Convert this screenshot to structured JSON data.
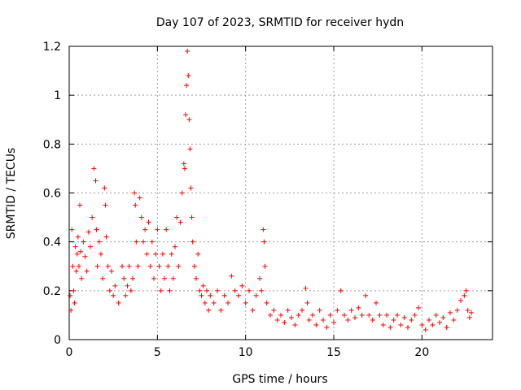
{
  "chart_data": {
    "type": "scatter",
    "title": "Day 107 of 2023, SRMTID for receiver hydn",
    "xlabel": "GPS time / hours",
    "ylabel": "SRMTID / TECUs",
    "xlim": [
      0,
      24
    ],
    "ylim": [
      0,
      1.2
    ],
    "xticks": [
      0,
      5,
      10,
      15,
      20
    ],
    "yticks": [
      0,
      0.2,
      0.4,
      0.6,
      0.8,
      1,
      1.2
    ],
    "xtick_labels": [
      "0",
      "5",
      "10",
      "15",
      "20"
    ],
    "ytick_labels": [
      "0",
      "0.2",
      "0.4",
      "0.6",
      "0.8",
      "1",
      "1.2"
    ],
    "grid": true,
    "marker": "+",
    "series_color": "#ff0000",
    "series": [
      {
        "name": "SRMTID",
        "points": [
          [
            0.05,
            0.18
          ],
          [
            0.1,
            0.12
          ],
          [
            0.15,
            0.45
          ],
          [
            0.2,
            0.3
          ],
          [
            0.25,
            0.2
          ],
          [
            0.3,
            0.15
          ],
          [
            0.35,
            0.38
          ],
          [
            0.4,
            0.28
          ],
          [
            0.45,
            0.35
          ],
          [
            0.5,
            0.42
          ],
          [
            0.55,
            0.3
          ],
          [
            0.6,
            0.55
          ],
          [
            0.65,
            0.36
          ],
          [
            0.7,
            0.25
          ],
          [
            0.8,
            0.4
          ],
          [
            0.9,
            0.34
          ],
          [
            1.0,
            0.28
          ],
          [
            1.1,
            0.44
          ],
          [
            1.2,
            0.38
          ],
          [
            1.3,
            0.5
          ],
          [
            1.4,
            0.7
          ],
          [
            1.5,
            0.65
          ],
          [
            1.55,
            0.45
          ],
          [
            1.6,
            0.3
          ],
          [
            1.7,
            0.4
          ],
          [
            1.8,
            0.35
          ],
          [
            1.9,
            0.25
          ],
          [
            2.0,
            0.62
          ],
          [
            2.05,
            0.55
          ],
          [
            2.1,
            0.42
          ],
          [
            2.2,
            0.3
          ],
          [
            2.3,
            0.2
          ],
          [
            2.4,
            0.28
          ],
          [
            2.5,
            0.18
          ],
          [
            2.6,
            0.22
          ],
          [
            2.8,
            0.15
          ],
          [
            3.0,
            0.3
          ],
          [
            3.1,
            0.25
          ],
          [
            3.2,
            0.18
          ],
          [
            3.3,
            0.22
          ],
          [
            3.4,
            0.3
          ],
          [
            3.5,
            0.2
          ],
          [
            3.6,
            0.25
          ],
          [
            3.7,
            0.6
          ],
          [
            3.75,
            0.55
          ],
          [
            3.8,
            0.4
          ],
          [
            3.9,
            0.3
          ],
          [
            4.0,
            0.58
          ],
          [
            4.1,
            0.5
          ],
          [
            4.2,
            0.4
          ],
          [
            4.3,
            0.45
          ],
          [
            4.4,
            0.35
          ],
          [
            4.5,
            0.48
          ],
          [
            4.6,
            0.3
          ],
          [
            4.7,
            0.4
          ],
          [
            4.8,
            0.25
          ],
          [
            4.9,
            0.35
          ],
          [
            5.0,
            0.45
          ],
          [
            5.1,
            0.3
          ],
          [
            5.2,
            0.2
          ],
          [
            5.3,
            0.35
          ],
          [
            5.4,
            0.25
          ],
          [
            5.5,
            0.45
          ],
          [
            5.6,
            0.3
          ],
          [
            5.7,
            0.2
          ],
          [
            5.8,
            0.35
          ],
          [
            5.9,
            0.25
          ],
          [
            6.0,
            0.38
          ],
          [
            6.1,
            0.5
          ],
          [
            6.2,
            0.3
          ],
          [
            6.3,
            0.48
          ],
          [
            6.4,
            0.6
          ],
          [
            6.5,
            0.72
          ],
          [
            6.55,
            0.7
          ],
          [
            6.6,
            0.92
          ],
          [
            6.65,
            1.04
          ],
          [
            6.7,
            1.18
          ],
          [
            6.75,
            1.08
          ],
          [
            6.8,
            0.9
          ],
          [
            6.85,
            0.78
          ],
          [
            6.9,
            0.62
          ],
          [
            6.95,
            0.5
          ],
          [
            7.0,
            0.4
          ],
          [
            7.1,
            0.3
          ],
          [
            7.2,
            0.25
          ],
          [
            7.3,
            0.35
          ],
          [
            7.4,
            0.2
          ],
          [
            7.5,
            0.18
          ],
          [
            7.6,
            0.22
          ],
          [
            7.7,
            0.15
          ],
          [
            7.8,
            0.2
          ],
          [
            7.9,
            0.12
          ],
          [
            8.0,
            0.18
          ],
          [
            8.2,
            0.15
          ],
          [
            8.4,
            0.2
          ],
          [
            8.6,
            0.12
          ],
          [
            8.8,
            0.18
          ],
          [
            9.0,
            0.15
          ],
          [
            9.2,
            0.26
          ],
          [
            9.4,
            0.2
          ],
          [
            9.6,
            0.18
          ],
          [
            9.8,
            0.22
          ],
          [
            10.0,
            0.15
          ],
          [
            10.2,
            0.2
          ],
          [
            10.4,
            0.12
          ],
          [
            10.6,
            0.18
          ],
          [
            10.8,
            0.25
          ],
          [
            10.9,
            0.2
          ],
          [
            11.0,
            0.45
          ],
          [
            11.05,
            0.4
          ],
          [
            11.1,
            0.3
          ],
          [
            11.2,
            0.15
          ],
          [
            11.4,
            0.1
          ],
          [
            11.6,
            0.12
          ],
          [
            11.8,
            0.08
          ],
          [
            12.0,
            0.1
          ],
          [
            12.2,
            0.07
          ],
          [
            12.4,
            0.12
          ],
          [
            12.6,
            0.09
          ],
          [
            12.8,
            0.06
          ],
          [
            13.0,
            0.1
          ],
          [
            13.2,
            0.12
          ],
          [
            13.4,
            0.21
          ],
          [
            13.5,
            0.15
          ],
          [
            13.6,
            0.08
          ],
          [
            13.8,
            0.1
          ],
          [
            14.0,
            0.06
          ],
          [
            14.2,
            0.12
          ],
          [
            14.4,
            0.08
          ],
          [
            14.6,
            0.05
          ],
          [
            14.8,
            0.1
          ],
          [
            15.0,
            0.07
          ],
          [
            15.2,
            0.12
          ],
          [
            15.4,
            0.2
          ],
          [
            15.6,
            0.1
          ],
          [
            15.8,
            0.08
          ],
          [
            16.0,
            0.12
          ],
          [
            16.2,
            0.09
          ],
          [
            16.4,
            0.13
          ],
          [
            16.6,
            0.1
          ],
          [
            16.8,
            0.18
          ],
          [
            17.0,
            0.1
          ],
          [
            17.2,
            0.08
          ],
          [
            17.4,
            0.15
          ],
          [
            17.6,
            0.1
          ],
          [
            17.8,
            0.06
          ],
          [
            18.0,
            0.1
          ],
          [
            18.2,
            0.05
          ],
          [
            18.4,
            0.08
          ],
          [
            18.6,
            0.1
          ],
          [
            18.8,
            0.06
          ],
          [
            19.0,
            0.09
          ],
          [
            19.2,
            0.05
          ],
          [
            19.4,
            0.08
          ],
          [
            19.6,
            0.1
          ],
          [
            19.8,
            0.13
          ],
          [
            20.0,
            0.06
          ],
          [
            20.2,
            0.04
          ],
          [
            20.4,
            0.08
          ],
          [
            20.6,
            0.06
          ],
          [
            20.8,
            0.1
          ],
          [
            21.0,
            0.07
          ],
          [
            21.2,
            0.09
          ],
          [
            21.4,
            0.05
          ],
          [
            21.6,
            0.11
          ],
          [
            21.8,
            0.08
          ],
          [
            22.0,
            0.12
          ],
          [
            22.2,
            0.16
          ],
          [
            22.4,
            0.18
          ],
          [
            22.5,
            0.2
          ],
          [
            22.6,
            0.12
          ],
          [
            22.7,
            0.09
          ],
          [
            22.8,
            0.11
          ]
        ]
      }
    ]
  }
}
